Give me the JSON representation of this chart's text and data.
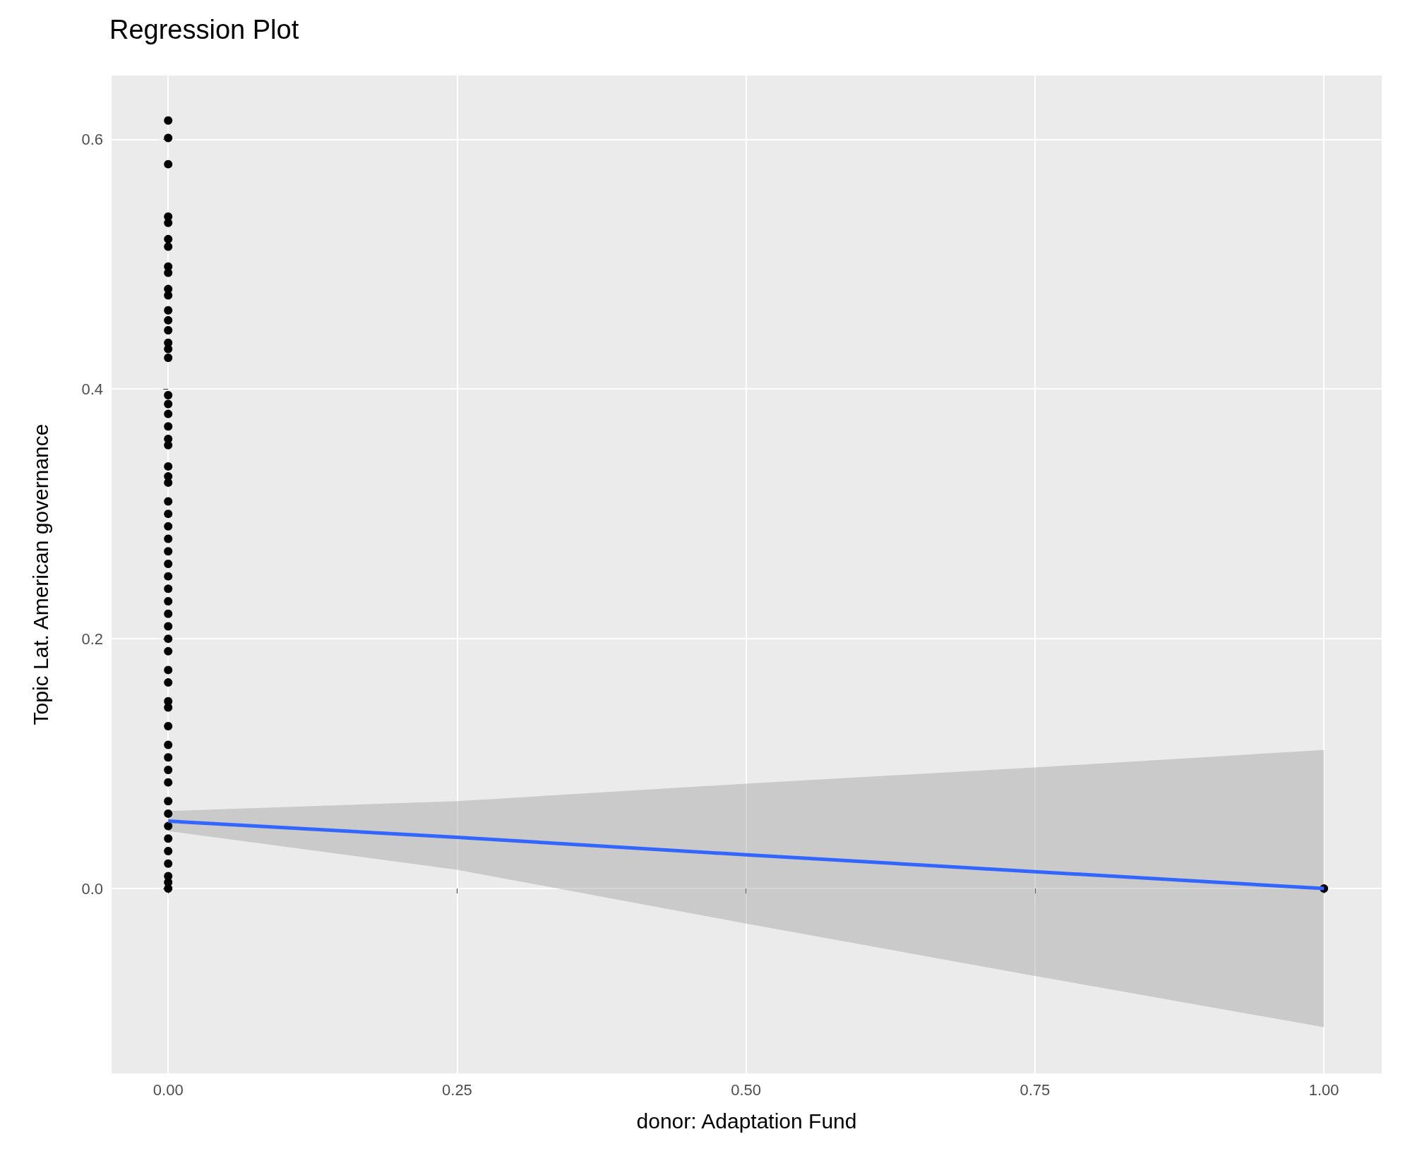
{
  "chart_data": {
    "type": "scatter",
    "title": "Regression Plot",
    "xlabel": "donor: Adaptation Fund",
    "ylabel": "Topic Lat. American governance",
    "series": [
      {
        "color": "#000000",
        "marker": "circle",
        "x": [
          0,
          0,
          0,
          0,
          0,
          0,
          0,
          0,
          0,
          0,
          0,
          0,
          0,
          0,
          0,
          0,
          0,
          0,
          0,
          0,
          0,
          0,
          0,
          0,
          0,
          0,
          0,
          0,
          0,
          0,
          0,
          0,
          0,
          0,
          0,
          0,
          0,
          0,
          0,
          0,
          0,
          0,
          0,
          0,
          0,
          0,
          0,
          0,
          0,
          0,
          0,
          0,
          0,
          0,
          0,
          0,
          0,
          1
        ],
        "values": [
          0.615,
          0.601,
          0.58,
          0.538,
          0.533,
          0.52,
          0.514,
          0.498,
          0.493,
          0.48,
          0.475,
          0.463,
          0.455,
          0.447,
          0.437,
          0.432,
          0.425,
          0.395,
          0.388,
          0.38,
          0.37,
          0.36,
          0.355,
          0.338,
          0.33,
          0.325,
          0.31,
          0.3,
          0.29,
          0.28,
          0.27,
          0.26,
          0.25,
          0.24,
          0.23,
          0.22,
          0.21,
          0.2,
          0.19,
          0.175,
          0.165,
          0.15,
          0.145,
          0.13,
          0.115,
          0.105,
          0.095,
          0.085,
          0.07,
          0.06,
          0.05,
          0.04,
          0.03,
          0.02,
          0.01,
          0.005,
          0,
          0
        ]
      },
      {
        "type": "line",
        "color": "#3366ff",
        "marker": "none",
        "x": [
          0,
          0.25,
          0.5,
          0.75,
          1
        ],
        "values": [
          0.054,
          0.041,
          0.027,
          0.0135,
          0
        ],
        "lower": [
          0.046,
          0.015,
          -0.028,
          -0.07,
          -0.111
        ],
        "upper": [
          0.062,
          0.07,
          0.084,
          0.097,
          0.111
        ]
      }
    ],
    "xlim": [
      -0.049,
      1.05
    ],
    "ylim": [
      -0.148,
      0.651
    ],
    "xticks": [
      {
        "value": 0,
        "label": "0.00"
      },
      0.25,
      {
        "value": 0.5,
        "label": "0.50"
      },
      0.75,
      {
        "value": 1,
        "label": "1.00"
      }
    ],
    "yticks": [
      {
        "value": 0,
        "label": "0.0"
      },
      0.2,
      0.4,
      0.6
    ],
    "grid": true
  }
}
